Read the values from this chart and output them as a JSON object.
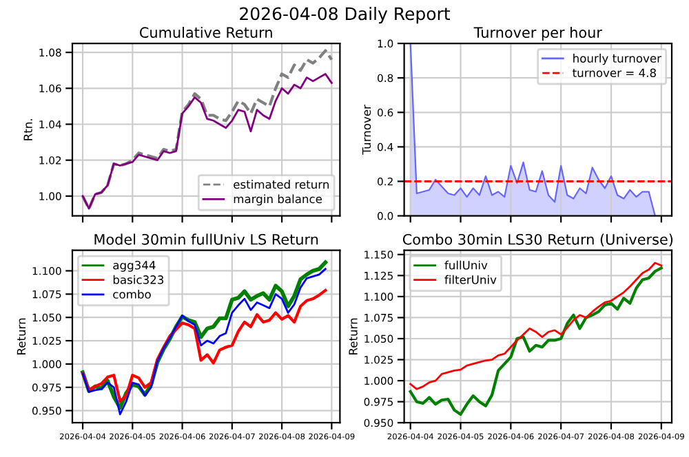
{
  "chart_data": [
    {
      "type": "line",
      "title": "Cumulative Return",
      "ylabel": "Rtn.",
      "annotations": [
        "2026-04-08 Daily Report"
      ],
      "x": [
        "2026-04-04T00:00",
        "2026-04-04T03:00",
        "2026-04-04T06:00",
        "2026-04-04T09:00",
        "2026-04-04T12:00",
        "2026-04-04T15:00",
        "2026-04-04T18:00",
        "2026-04-04T21:00",
        "2026-04-05T00:00",
        "2026-04-05T03:00",
        "2026-04-05T06:00",
        "2026-04-05T09:00",
        "2026-04-05T12:00",
        "2026-04-05T15:00",
        "2026-04-05T18:00",
        "2026-04-05T21:00",
        "2026-04-06T00:00",
        "2026-04-06T03:00",
        "2026-04-06T06:00",
        "2026-04-06T09:00",
        "2026-04-06T12:00",
        "2026-04-06T15:00",
        "2026-04-06T18:00",
        "2026-04-06T21:00",
        "2026-04-07T00:00",
        "2026-04-07T03:00",
        "2026-04-07T06:00",
        "2026-04-07T09:00",
        "2026-04-07T12:00",
        "2026-04-07T15:00",
        "2026-04-07T18:00",
        "2026-04-07T21:00",
        "2026-04-08T00:00",
        "2026-04-08T03:00",
        "2026-04-08T06:00",
        "2026-04-08T09:00",
        "2026-04-08T12:00",
        "2026-04-08T15:00",
        "2026-04-08T18:00",
        "2026-04-08T21:00",
        "2026-04-09T00:00"
      ],
      "series": [
        {
          "name": "estimated return",
          "color": "#808080",
          "line_style": "dashed",
          "values": [
            1.0,
            0.993,
            1.001,
            1.002,
            1.006,
            1.018,
            1.017,
            1.018,
            1.02,
            1.024,
            1.023,
            1.022,
            1.021,
            1.026,
            1.025,
            1.026,
            1.047,
            1.051,
            1.057,
            1.054,
            1.045,
            1.045,
            1.043,
            1.042,
            1.047,
            1.053,
            1.051,
            1.046,
            1.054,
            1.052,
            1.05,
            1.06,
            1.068,
            1.066,
            1.073,
            1.07,
            1.076,
            1.074,
            1.077,
            1.081,
            1.076
          ]
        },
        {
          "name": "margin balance",
          "color": "#800080",
          "line_style": "solid",
          "values": [
            1.0,
            0.993,
            1.001,
            1.002,
            1.006,
            1.018,
            1.017,
            1.018,
            1.019,
            1.023,
            1.022,
            1.021,
            1.02,
            1.025,
            1.024,
            1.025,
            1.046,
            1.05,
            1.055,
            1.052,
            1.043,
            1.042,
            1.04,
            1.038,
            1.042,
            1.048,
            1.047,
            1.036,
            1.048,
            1.045,
            1.043,
            1.053,
            1.06,
            1.057,
            1.062,
            1.06,
            1.066,
            1.064,
            1.066,
            1.068,
            1.063
          ]
        }
      ],
      "xlim": [
        "2026-04-03T19:00",
        "2026-04-09T04:00"
      ],
      "xticks": [
        "2026-04-04",
        "2026-04-05",
        "2026-04-06",
        "2026-04-07",
        "2026-04-08",
        "2026-04-09"
      ],
      "ylim": [
        0.989,
        1.085
      ],
      "yticks": [
        {
          "value": 1.0,
          "label": "1.00"
        },
        {
          "value": 1.02,
          "label": "1.02"
        },
        {
          "value": 1.04,
          "label": "1.04"
        },
        {
          "value": 1.06,
          "label": "1.06"
        },
        {
          "value": 1.08,
          "label": "1.08"
        }
      ],
      "tick_labels": "y",
      "grid": true,
      "legend": "bottom right"
    },
    {
      "type": "area",
      "title": "Turnover per hour",
      "ylabel": "Turnover",
      "x": [
        "2026-04-04T00:00",
        "2026-04-04T03:00",
        "2026-04-04T06:00",
        "2026-04-04T09:00",
        "2026-04-04T12:00",
        "2026-04-04T15:00",
        "2026-04-04T18:00",
        "2026-04-04T21:00",
        "2026-04-05T00:00",
        "2026-04-05T03:00",
        "2026-04-05T06:00",
        "2026-04-05T09:00",
        "2026-04-05T12:00",
        "2026-04-05T15:00",
        "2026-04-05T18:00",
        "2026-04-05T21:00",
        "2026-04-06T00:00",
        "2026-04-06T03:00",
        "2026-04-06T06:00",
        "2026-04-06T09:00",
        "2026-04-06T12:00",
        "2026-04-06T15:00",
        "2026-04-06T18:00",
        "2026-04-06T21:00",
        "2026-04-07T00:00",
        "2026-04-07T03:00",
        "2026-04-07T06:00",
        "2026-04-07T09:00",
        "2026-04-07T12:00",
        "2026-04-07T15:00",
        "2026-04-07T18:00",
        "2026-04-07T21:00",
        "2026-04-08T00:00",
        "2026-04-08T03:00",
        "2026-04-08T06:00",
        "2026-04-08T09:00",
        "2026-04-08T12:00",
        "2026-04-08T15:00",
        "2026-04-08T18:00",
        "2026-04-08T21:00"
      ],
      "series": [
        {
          "name": "hourly turnover",
          "color": "#6666ff",
          "values": [
            1.0,
            0.13,
            0.14,
            0.15,
            0.21,
            0.17,
            0.13,
            0.12,
            0.16,
            0.11,
            0.16,
            0.12,
            0.23,
            0.12,
            0.14,
            0.11,
            0.29,
            0.19,
            0.31,
            0.15,
            0.14,
            0.26,
            0.12,
            0.08,
            0.29,
            0.12,
            0.1,
            0.16,
            0.13,
            0.28,
            0.21,
            0.16,
            0.23,
            0.12,
            0.1,
            0.15,
            0.11,
            0.14,
            0.14,
            0.0
          ]
        },
        {
          "name": "turnover = 4.8",
          "type": "line",
          "color": "#ff0000",
          "line_style": "dashed",
          "x": [
            "2026-04-03T21:00",
            "2026-04-09T05:00"
          ],
          "values": [
            0.2,
            0.2
          ]
        }
      ],
      "xlim": [
        "2026-04-03T21:00",
        "2026-04-09T05:00"
      ],
      "xticks": [
        "2026-04-04",
        "2026-04-05",
        "2026-04-06",
        "2026-04-07",
        "2026-04-08",
        "2026-04-09"
      ],
      "ylim": [
        0,
        1.0
      ],
      "yticks": [
        {
          "value": 0,
          "label": "0.0"
        },
        0.2,
        0.4,
        0.6,
        0.8,
        {
          "value": 1,
          "label": "1.0"
        }
      ],
      "tick_labels": "y",
      "grid": true,
      "legend": "top right"
    },
    {
      "type": "line",
      "title": "Model 30min fullUniv LS Return",
      "ylabel": "Return",
      "x": [
        "2026-04-04T00:00",
        "2026-04-04T03:00",
        "2026-04-04T06:00",
        "2026-04-04T09:00",
        "2026-04-04T12:00",
        "2026-04-04T15:00",
        "2026-04-04T18:00",
        "2026-04-04T21:00",
        "2026-04-05T00:00",
        "2026-04-05T03:00",
        "2026-04-05T06:00",
        "2026-04-05T09:00",
        "2026-04-05T12:00",
        "2026-04-05T15:00",
        "2026-04-05T18:00",
        "2026-04-05T21:00",
        "2026-04-06T00:00",
        "2026-04-06T03:00",
        "2026-04-06T06:00",
        "2026-04-06T09:00",
        "2026-04-06T12:00",
        "2026-04-06T15:00",
        "2026-04-06T18:00",
        "2026-04-06T21:00",
        "2026-04-07T00:00",
        "2026-04-07T03:00",
        "2026-04-07T06:00",
        "2026-04-07T09:00",
        "2026-04-07T12:00",
        "2026-04-07T15:00",
        "2026-04-07T18:00",
        "2026-04-07T21:00",
        "2026-04-08T00:00",
        "2026-04-08T03:00",
        "2026-04-08T06:00",
        "2026-04-08T09:00",
        "2026-04-08T12:00",
        "2026-04-08T15:00",
        "2026-04-08T18:00",
        "2026-04-08T21:00"
      ],
      "series": [
        {
          "name": "agg344",
          "color": "#008000",
          "values": [
            0.991,
            0.971,
            0.976,
            0.974,
            0.982,
            0.965,
            0.953,
            0.969,
            0.978,
            0.976,
            0.967,
            0.978,
            1.002,
            1.016,
            1.027,
            1.04,
            1.051,
            1.047,
            1.045,
            1.029,
            1.038,
            1.04,
            1.049,
            1.049,
            1.069,
            1.071,
            1.078,
            1.069,
            1.073,
            1.076,
            1.069,
            1.084,
            1.078,
            1.062,
            1.073,
            1.091,
            1.096,
            1.1,
            1.102,
            1.109
          ]
        },
        {
          "name": "basic323",
          "color": "#ff0000",
          "values": [
            0.99,
            0.972,
            0.976,
            0.979,
            0.986,
            0.988,
            0.96,
            0.966,
            0.988,
            0.985,
            0.975,
            0.98,
            1.005,
            1.018,
            1.03,
            1.037,
            1.044,
            1.042,
            1.038,
            1.004,
            1.01,
            1.001,
            1.015,
            1.018,
            1.02,
            1.035,
            1.045,
            1.04,
            1.053,
            1.045,
            1.047,
            1.055,
            1.048,
            1.052,
            1.045,
            1.062,
            1.068,
            1.07,
            1.074,
            1.079
          ]
        },
        {
          "name": "combo",
          "color": "#0000ff",
          "values": [
            0.99,
            0.97,
            0.972,
            0.973,
            0.98,
            0.975,
            0.946,
            0.96,
            0.98,
            0.978,
            0.966,
            0.975,
            1.003,
            1.017,
            1.028,
            1.04,
            1.052,
            1.046,
            1.042,
            1.02,
            1.025,
            1.022,
            1.03,
            1.033,
            1.055,
            1.063,
            1.07,
            1.058,
            1.066,
            1.063,
            1.06,
            1.075,
            1.07,
            1.055,
            1.064,
            1.082,
            1.092,
            1.094,
            1.096,
            1.102
          ]
        }
      ],
      "xlim": [
        "2026-04-03T19:00",
        "2026-04-09T04:00"
      ],
      "xticks": [
        "2026-04-04",
        "2026-04-05",
        "2026-04-06",
        "2026-04-07",
        "2026-04-08",
        "2026-04-09"
      ],
      "ylim": [
        0.937,
        1.122
      ],
      "yticks": [
        {
          "value": 0.95,
          "label": "0.950"
        },
        0.975,
        {
          "value": 1.0,
          "label": "1.000"
        },
        1.025,
        {
          "value": 1.05,
          "label": "1.050"
        },
        1.075,
        {
          "value": 1.1,
          "label": "1.100"
        }
      ],
      "grid": true,
      "legend": "top left"
    },
    {
      "type": "line",
      "title": "Combo 30min LS30 Return (Universe)",
      "ylabel": "Return",
      "x": [
        "2026-04-04T00:00",
        "2026-04-04T03:00",
        "2026-04-04T06:00",
        "2026-04-04T09:00",
        "2026-04-04T12:00",
        "2026-04-04T15:00",
        "2026-04-04T18:00",
        "2026-04-04T21:00",
        "2026-04-05T00:00",
        "2026-04-05T03:00",
        "2026-04-05T06:00",
        "2026-04-05T09:00",
        "2026-04-05T12:00",
        "2026-04-05T15:00",
        "2026-04-05T18:00",
        "2026-04-05T21:00",
        "2026-04-06T00:00",
        "2026-04-06T03:00",
        "2026-04-06T06:00",
        "2026-04-06T09:00",
        "2026-04-06T12:00",
        "2026-04-06T15:00",
        "2026-04-06T18:00",
        "2026-04-06T21:00",
        "2026-04-07T00:00",
        "2026-04-07T03:00",
        "2026-04-07T06:00",
        "2026-04-07T09:00",
        "2026-04-07T12:00",
        "2026-04-07T15:00",
        "2026-04-07T18:00",
        "2026-04-07T21:00",
        "2026-04-08T00:00",
        "2026-04-08T03:00",
        "2026-04-08T06:00",
        "2026-04-08T09:00",
        "2026-04-08T12:00",
        "2026-04-08T15:00",
        "2026-04-08T18:00",
        "2026-04-08T21:00",
        "2026-04-09T00:00"
      ],
      "series": [
        {
          "name": "fullUniv",
          "color": "#008000",
          "values": [
            0.987,
            0.975,
            0.973,
            0.98,
            0.972,
            0.977,
            0.978,
            0.965,
            0.96,
            0.972,
            0.982,
            0.975,
            0.97,
            0.983,
            1.012,
            1.02,
            1.028,
            1.05,
            1.052,
            1.035,
            1.042,
            1.04,
            1.048,
            1.048,
            1.05,
            1.068,
            1.078,
            1.062,
            1.075,
            1.078,
            1.082,
            1.09,
            1.092,
            1.085,
            1.098,
            1.092,
            1.11,
            1.12,
            1.122,
            1.13,
            1.134
          ]
        },
        {
          "name": "filterUniv",
          "color": "#ff0000",
          "values": [
            0.996,
            0.99,
            0.993,
            0.998,
            1.0,
            1.008,
            1.01,
            1.012,
            1.013,
            1.018,
            1.02,
            1.022,
            1.024,
            1.025,
            1.03,
            1.032,
            1.04,
            1.048,
            1.055,
            1.062,
            1.058,
            1.052,
            1.058,
            1.06,
            1.055,
            1.063,
            1.072,
            1.078,
            1.075,
            1.082,
            1.088,
            1.093,
            1.095,
            1.1,
            1.105,
            1.112,
            1.12,
            1.128,
            1.132,
            1.14,
            1.137
          ]
        }
      ],
      "xlim": [
        "2026-04-03T21:00",
        "2026-04-09T05:00"
      ],
      "xticks": [
        "2026-04-04",
        "2026-04-05",
        "2026-04-06",
        "2026-04-07",
        "2026-04-08",
        "2026-04-09"
      ],
      "ylim": [
        0.95,
        1.155
      ],
      "yticks": [
        {
          "value": 0.95,
          "label": "0.950"
        },
        0.975,
        {
          "value": 1.0,
          "label": "1.000"
        },
        1.025,
        {
          "value": 1.05,
          "label": "1.050"
        },
        1.075,
        {
          "value": 1.1,
          "label": "1.100"
        },
        1.125,
        {
          "value": 1.15,
          "label": "1.150"
        }
      ],
      "grid": true,
      "legend": "top left"
    }
  ]
}
